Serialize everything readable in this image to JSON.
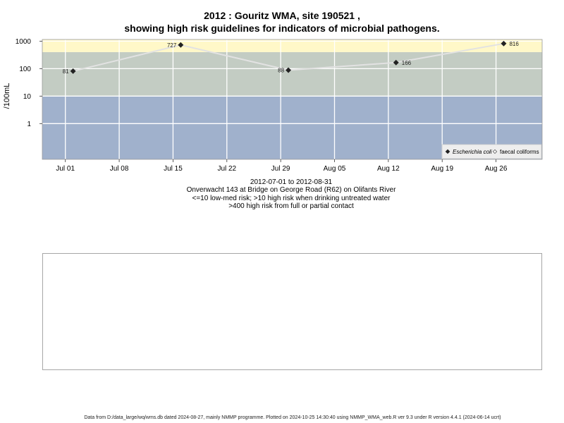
{
  "titles": {
    "line1": "2012 : Gouritz WMA, site 190521 ,",
    "line2": "showing high risk guidelines for indicators of microbial pathogens."
  },
  "chart_data": {
    "type": "scatter",
    "ylabel": "/100mL",
    "y_scale": "log10",
    "ylim": [
      0.05,
      1150
    ],
    "xlim": [
      "2012-06-28",
      "2012-09-01"
    ],
    "y_ticks": [
      1,
      10,
      100,
      1000
    ],
    "y_tick_labels": [
      "1",
      "10",
      "100",
      "1000"
    ],
    "x_ticks": [
      "2012-07-01",
      "2012-07-08",
      "2012-07-15",
      "2012-07-22",
      "2012-07-29",
      "2012-08-05",
      "2012-08-12",
      "2012-08-19",
      "2012-08-26"
    ],
    "x_tick_labels": [
      "Jul 01",
      "Jul 08",
      "Jul 15",
      "Jul 22",
      "Jul 29",
      "Aug 05",
      "Aug 12",
      "Aug 19",
      "Aug 26"
    ],
    "grid": true,
    "risk_bands": [
      {
        "from": 0.05,
        "to": 10,
        "color": "#a0b1cc",
        "meaning": "low-med risk"
      },
      {
        "from": 10,
        "to": 400,
        "color": "#c3ccc3",
        "meaning": "high risk when drinking untreated water"
      },
      {
        "from": 400,
        "to": 1150,
        "color": "#fff8c8",
        "meaning": "high risk from full or partial contact"
      }
    ],
    "series": [
      {
        "name": "Escherichia coli",
        "marker": "filled-diamond",
        "color": "#222222",
        "line_color": "#e2e2e2",
        "points": [
          {
            "x": "2012-07-02",
            "y": 81,
            "label": "81"
          },
          {
            "x": "2012-07-16",
            "y": 727,
            "label": "727"
          },
          {
            "x": "2012-07-30",
            "y": 88,
            "label": "88"
          },
          {
            "x": "2012-08-13",
            "y": 166,
            "label": "166"
          },
          {
            "x": "2012-08-27",
            "y": 816,
            "label": "816"
          }
        ]
      },
      {
        "name": "faecal coliforms",
        "marker": "open-diamond",
        "color": "#555555",
        "points": []
      }
    ],
    "legend_position": "bottom-right"
  },
  "captions": {
    "date_range": "2012-07-01 to 2012-08-31",
    "site": "Onverwacht 143 at Bridge on George Road (R62) on Olifants River",
    "risk_low": "<=10 low-med risk; >10 high risk when drinking untreated water",
    "risk_high": ">400 high risk from full or partial contact"
  },
  "footer": "Data from D:/data_large/wq/wms.db dated 2024-08-27, mainly NMMP programme. Plotted on 2024-10-25 14:30:40 using NMMP_WMA_web.R ver 9.3 under R version 4.4.1 (2024-06-14 ucrt)"
}
